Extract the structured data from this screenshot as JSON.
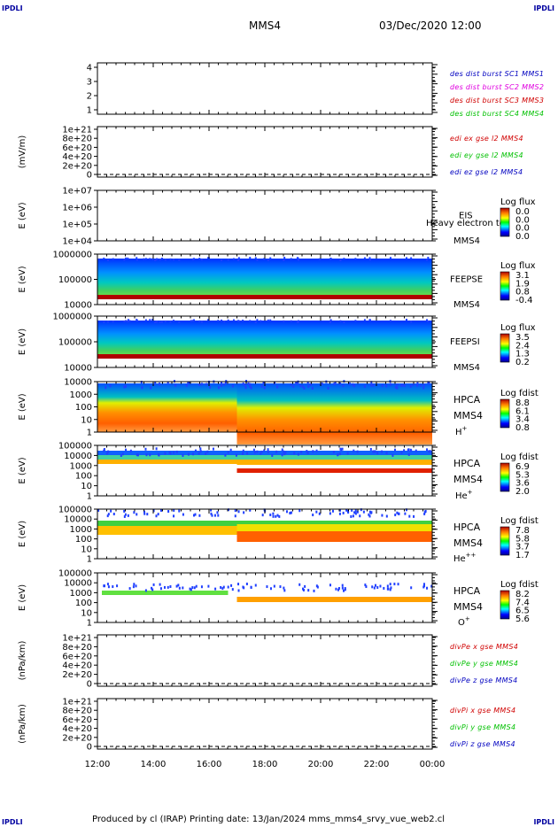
{
  "corner_label": "IPDLI",
  "header": {
    "spacecraft": "MMS4",
    "datetime": "03/Dec/2020 12:00"
  },
  "footer": {
    "text": "Produced by cl (IRAP)   Printing date: 13/Jan/2024   mms_mms4_srvy_vue_web2.cl"
  },
  "colors": {
    "blue": "#0000c0",
    "red": "#d00000",
    "magenta": "#e000e0",
    "green": "#00c000",
    "dark_red": "#b00000"
  },
  "chart_data": {
    "type": "heatmap",
    "x_axis": {
      "tick_labels": [
        "12:00",
        "14:00",
        "16:00",
        "18:00",
        "20:00",
        "22:00",
        "00:00"
      ]
    },
    "panels": [
      {
        "id": "p1",
        "kind": "line",
        "ylabel": "",
        "yticks": [
          "4",
          "3",
          "2",
          "1"
        ],
        "legend": [
          {
            "text": "des dist burst SC1 MMS1",
            "color": "#0000c0"
          },
          {
            "text": "des dist burst SC2 MMS2",
            "color": "#e000e0"
          },
          {
            "text": "des dist burst SC3 MMS3",
            "color": "#d00000"
          },
          {
            "text": "des dist burst SC4 MMS4",
            "color": "#00c000"
          }
        ]
      },
      {
        "id": "p2",
        "kind": "line",
        "ylabel": "(mV/m)",
        "yticks": [
          "1e+21",
          "8e+20",
          "6e+20",
          "4e+20",
          "2e+20",
          "0"
        ],
        "legend": [
          {
            "text": "edi ex gse l2 MMS4",
            "color": "#d00000"
          },
          {
            "text": "edi ey gse l2 MMS4",
            "color": "#00c000"
          },
          {
            "text": "edi ez gse l2 MMS4",
            "color": "#0000c0"
          }
        ]
      },
      {
        "id": "p3",
        "kind": "spec",
        "ylabel": "E (eV)",
        "yticks": [
          "1e+07",
          "1e+06",
          "1e+05",
          "1e+04"
        ],
        "instrument": "EIS",
        "craft": "MMS4",
        "overlay": "Heavy electron to",
        "cbar": {
          "title": "Log flux",
          "values": [
            "0.0",
            "0.0",
            "0.0",
            "0.0"
          ]
        }
      },
      {
        "id": "p4",
        "kind": "spec",
        "ylabel": "E (eV)",
        "yticks": [
          "1000000",
          "100000",
          "10000"
        ],
        "instrument": "FEEPSE",
        "craft": "MMS4",
        "cbar": {
          "title": "Log flux",
          "values": [
            "3.1",
            "1.9",
            "0.8",
            "-0.4"
          ]
        }
      },
      {
        "id": "p5",
        "kind": "spec",
        "ylabel": "E (eV)",
        "yticks": [
          "1000000",
          "100000",
          "10000"
        ],
        "instrument": "FEEPSI",
        "craft": "MMS4",
        "cbar": {
          "title": "Log flux",
          "values": [
            "3.5",
            "2.4",
            "1.3",
            "0.2"
          ]
        }
      },
      {
        "id": "p6",
        "kind": "spec",
        "ylabel": "E (eV)",
        "yticks": [
          "10000",
          "1000",
          "100",
          "10",
          "1"
        ],
        "instrument": "HPCA",
        "craft": "MMS4",
        "species": "H",
        "charge": "+",
        "cbar": {
          "title": "Log fdist",
          "values": [
            "8.8",
            "6.1",
            "3.4",
            "0.8"
          ]
        }
      },
      {
        "id": "p7",
        "kind": "spec",
        "ylabel": "E (eV)",
        "yticks": [
          "100000",
          "10000",
          "1000",
          "100",
          "10",
          "1"
        ],
        "instrument": "HPCA",
        "craft": "MMS4",
        "species": "He",
        "charge": "+",
        "cbar": {
          "title": "Log fdist",
          "values": [
            "6.9",
            "5.3",
            "3.6",
            "2.0"
          ]
        }
      },
      {
        "id": "p8",
        "kind": "spec",
        "ylabel": "E (eV)",
        "yticks": [
          "100000",
          "10000",
          "1000",
          "100",
          "10",
          "1"
        ],
        "instrument": "HPCA",
        "craft": "MMS4",
        "species": "He",
        "charge": "++",
        "cbar": {
          "title": "Log fdist",
          "values": [
            "7.8",
            "5.8",
            "3.7",
            "1.7"
          ]
        }
      },
      {
        "id": "p9",
        "kind": "spec",
        "ylabel": "E (eV)",
        "yticks": [
          "100000",
          "10000",
          "1000",
          "100",
          "10",
          "1"
        ],
        "instrument": "HPCA",
        "craft": "MMS4",
        "species": "O",
        "charge": "+",
        "cbar": {
          "title": "Log fdist",
          "values": [
            "8.2",
            "7.4",
            "6.5",
            "5.6"
          ]
        }
      },
      {
        "id": "p10",
        "kind": "line",
        "ylabel": "(nPa/km)",
        "yticks": [
          "1e+21",
          "8e+20",
          "6e+20",
          "4e+20",
          "2e+20",
          "0"
        ],
        "legend": [
          {
            "text": "divPe x gse MMS4",
            "color": "#d00000"
          },
          {
            "text": "divPe y gse MMS4",
            "color": "#00c000"
          },
          {
            "text": "divPe z gse MMS4",
            "color": "#0000c0"
          }
        ]
      },
      {
        "id": "p11",
        "kind": "line",
        "ylabel": "(nPa/km)",
        "yticks": [
          "1e+21",
          "8e+20",
          "6e+20",
          "4e+20",
          "2e+20",
          "0"
        ],
        "legend": [
          {
            "text": "divPi x gse MMS4",
            "color": "#d00000"
          },
          {
            "text": "divPi y gse MMS4",
            "color": "#00c000"
          },
          {
            "text": "divPi z gse MMS4",
            "color": "#0000c0"
          }
        ]
      }
    ]
  }
}
